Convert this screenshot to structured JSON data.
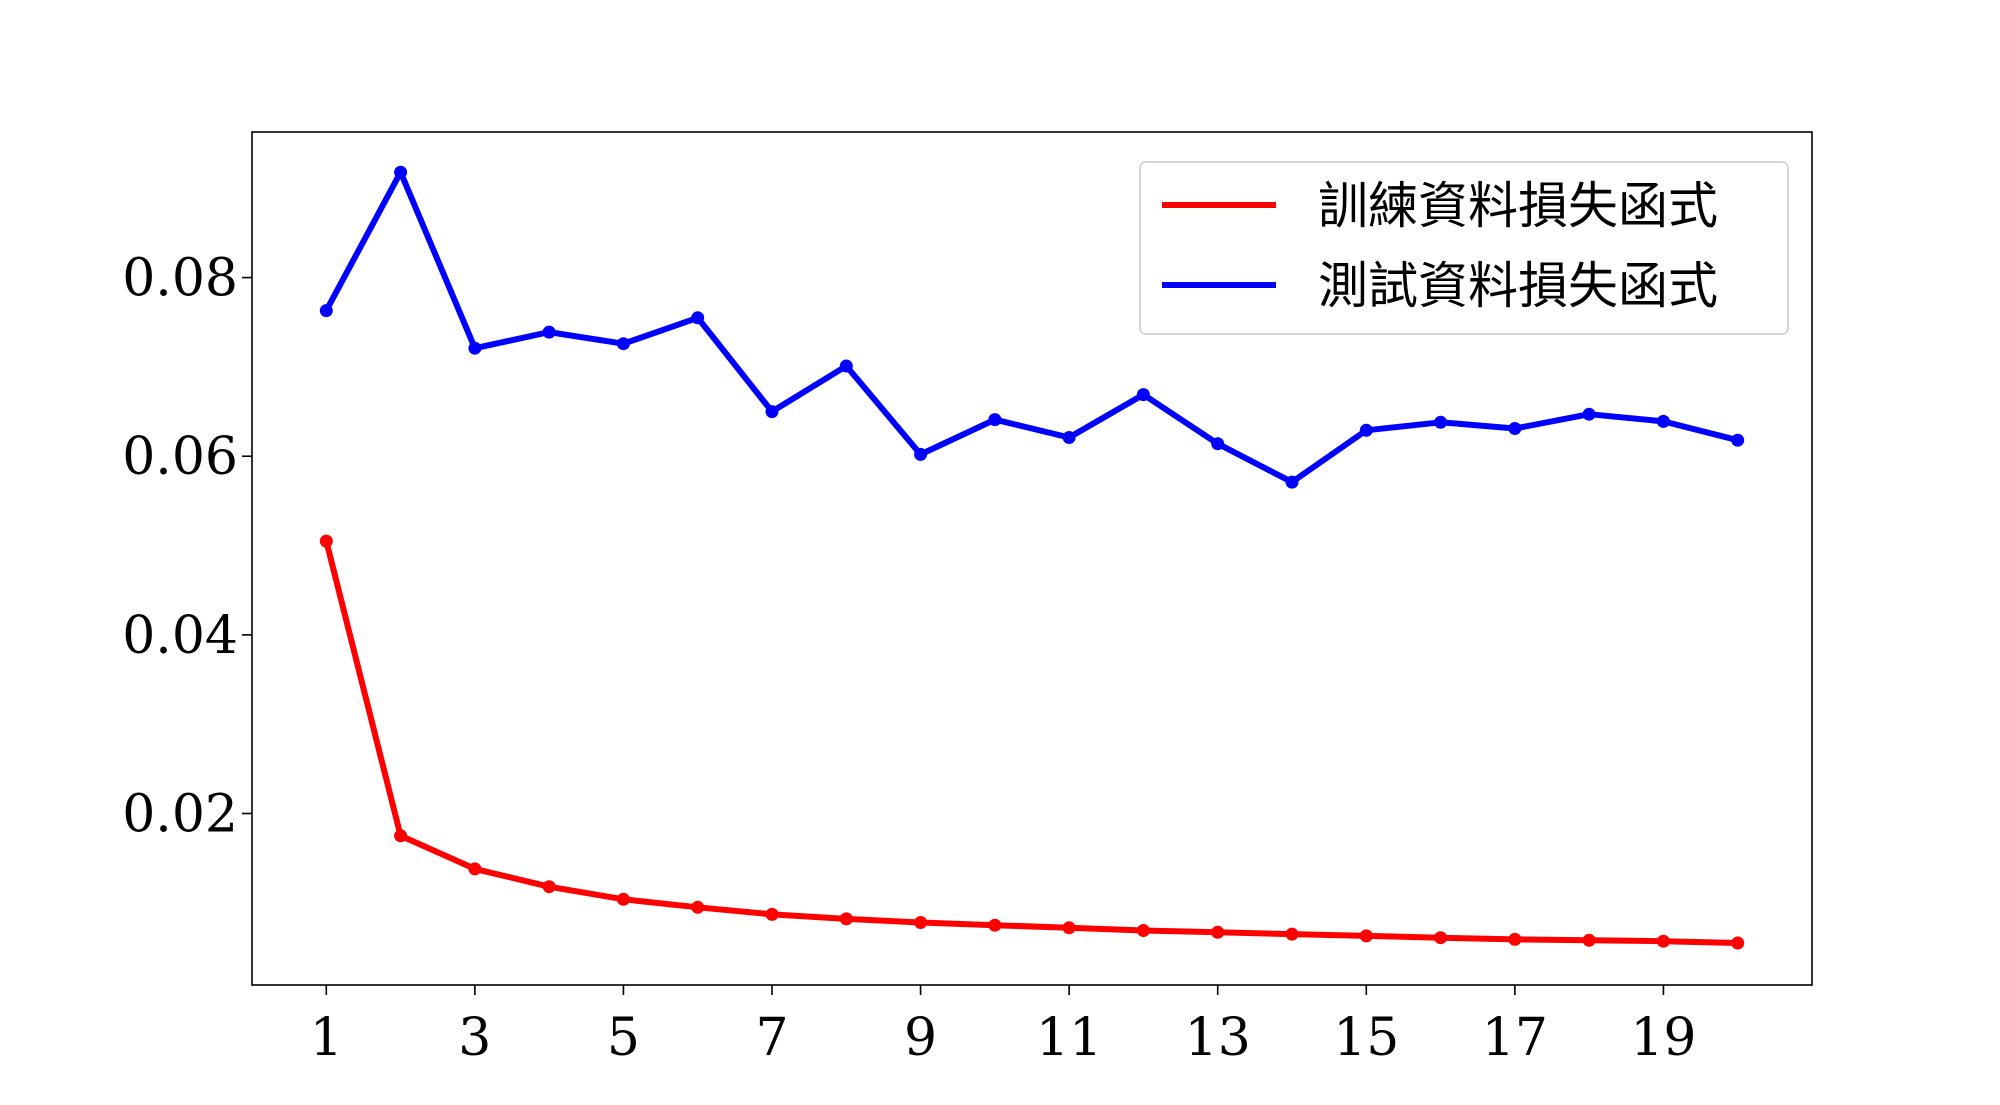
{
  "chart_data": {
    "type": "line",
    "title": "",
    "xlabel": "",
    "ylabel": "",
    "x": [
      1,
      2,
      3,
      4,
      5,
      6,
      7,
      8,
      9,
      10,
      11,
      12,
      13,
      14,
      15,
      16,
      17,
      18,
      19,
      20
    ],
    "x_ticks": [
      1,
      3,
      5,
      7,
      9,
      11,
      13,
      15,
      17,
      19
    ],
    "y_ticks": [
      0.02,
      0.04,
      0.06,
      0.08
    ],
    "y_tick_labels": [
      "0.02",
      "0.04",
      "0.06",
      "0.08"
    ],
    "x_tick_labels": [
      "1",
      "3",
      "5",
      "7",
      "9",
      "11",
      "13",
      "15",
      "17",
      "19"
    ],
    "xlim": [
      0.0,
      21.0
    ],
    "ylim": [
      0.0008,
      0.0963
    ],
    "grid": false,
    "legend_position": "top-right",
    "series": [
      {
        "name": "訓練資料損失函式",
        "color": "#ff0000",
        "values": [
          0.0505,
          0.0175,
          0.0138,
          0.0118,
          0.0104,
          0.0095,
          0.0087,
          0.0082,
          0.0078,
          0.0075,
          0.0072,
          0.0069,
          0.0067,
          0.0065,
          0.0063,
          0.0061,
          0.0059,
          0.0058,
          0.0057,
          0.0055
        ]
      },
      {
        "name": "測試資料損失函式",
        "color": "#0000ff",
        "values": [
          0.0763,
          0.0918,
          0.0721,
          0.0739,
          0.0726,
          0.0755,
          0.065,
          0.0701,
          0.0602,
          0.0641,
          0.0621,
          0.0669,
          0.0614,
          0.0571,
          0.0629,
          0.0638,
          0.0631,
          0.0647,
          0.0639,
          0.0618
        ]
      }
    ]
  }
}
